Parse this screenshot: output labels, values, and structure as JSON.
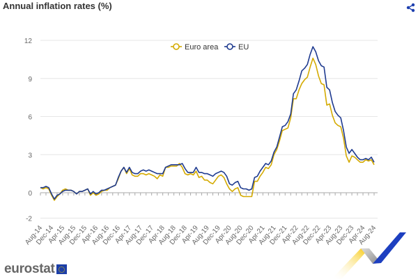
{
  "header": {
    "title": "Annual inflation rates (%)",
    "share_icon": "share-icon"
  },
  "brand": {
    "logo_text": "eurostat"
  },
  "colors": {
    "euro_area": "#d4aa00",
    "eu": "#1e3a8f",
    "grid": "#e6e6e6"
  },
  "chart_data": {
    "type": "line",
    "title": "Annual inflation rates (%)",
    "xlabel": "",
    "ylabel": "",
    "ylim": [
      -2,
      12
    ],
    "yticks": [
      -2,
      0,
      3,
      6,
      9,
      12
    ],
    "x_start": "Aug-14",
    "x_end": "Aug-24",
    "x_interval": "monthly",
    "xtick_labels": [
      "Aug-14",
      "Dec-14",
      "Apr-15",
      "Aug-15",
      "Dec-15",
      "Apr-16",
      "Aug-16",
      "Dec-16",
      "Apr-17",
      "Aug-17",
      "Dec-17",
      "Apr-18",
      "Aug-18",
      "Dec-18",
      "Apr-19",
      "Aug-19",
      "Dec-19",
      "Apr-20",
      "Aug-20",
      "Dec-20",
      "Apr-21",
      "Aug-21",
      "Dec-21",
      "Apr-22",
      "Aug-22",
      "Dec-22",
      "Apr-23",
      "Aug-23",
      "Dec-23",
      "Apr-24",
      "Aug-24"
    ],
    "legend_position": "top-center",
    "series": [
      {
        "name": "Euro area",
        "values": [
          0.4,
          0.3,
          0.4,
          0.3,
          -0.2,
          -0.6,
          -0.3,
          -0.1,
          0.2,
          0.3,
          0.2,
          0.2,
          0.1,
          -0.1,
          0.1,
          0.1,
          0.2,
          0.3,
          -0.2,
          0.0,
          -0.2,
          -0.1,
          0.1,
          0.2,
          0.2,
          0.4,
          0.5,
          0.6,
          1.1,
          1.7,
          2.0,
          1.5,
          1.9,
          1.4,
          1.3,
          1.3,
          1.5,
          1.5,
          1.4,
          1.5,
          1.4,
          1.3,
          1.1,
          1.4,
          1.3,
          2.0,
          2.0,
          2.1,
          2.1,
          2.1,
          2.3,
          2.0,
          1.5,
          1.4,
          1.5,
          1.4,
          1.7,
          1.2,
          1.3,
          1.0,
          1.0,
          0.8,
          0.7,
          1.0,
          1.3,
          1.4,
          1.2,
          0.7,
          0.3,
          0.1,
          0.3,
          0.4,
          -0.2,
          -0.3,
          -0.3,
          -0.3,
          -0.3,
          0.9,
          0.9,
          1.3,
          1.6,
          2.0,
          1.9,
          2.2,
          3.0,
          3.4,
          4.1,
          4.9,
          5.0,
          5.1,
          5.9,
          7.4,
          7.4,
          8.1,
          8.6,
          8.9,
          9.1,
          9.9,
          10.6,
          10.1,
          9.2,
          8.6,
          8.5,
          6.9,
          7.0,
          6.1,
          5.5,
          5.3,
          5.2,
          4.3,
          2.9,
          2.4,
          2.9,
          2.8,
          2.6,
          2.4,
          2.4,
          2.6,
          2.5,
          2.6,
          2.2
        ]
      },
      {
        "name": "EU",
        "values": [
          0.4,
          0.4,
          0.5,
          0.4,
          -0.1,
          -0.5,
          -0.2,
          -0.1,
          0.1,
          0.2,
          0.2,
          0.2,
          0.1,
          -0.1,
          0.1,
          0.1,
          0.2,
          0.3,
          -0.1,
          0.1,
          -0.1,
          0.0,
          0.2,
          0.2,
          0.3,
          0.4,
          0.5,
          0.6,
          1.2,
          1.7,
          2.0,
          1.6,
          2.0,
          1.6,
          1.5,
          1.5,
          1.7,
          1.8,
          1.7,
          1.8,
          1.7,
          1.6,
          1.5,
          1.5,
          1.5,
          2.0,
          2.1,
          2.2,
          2.2,
          2.2,
          2.2,
          2.3,
          1.9,
          1.6,
          1.6,
          1.6,
          2.0,
          1.6,
          1.6,
          1.5,
          1.5,
          1.4,
          1.3,
          1.5,
          1.6,
          1.7,
          1.6,
          1.3,
          0.7,
          0.6,
          0.8,
          0.9,
          0.4,
          0.3,
          0.3,
          0.2,
          0.3,
          1.2,
          1.3,
          1.7,
          2.0,
          2.3,
          2.2,
          2.5,
          3.2,
          3.6,
          4.4,
          5.2,
          5.3,
          5.6,
          6.2,
          7.8,
          8.1,
          8.8,
          9.6,
          9.8,
          10.1,
          10.9,
          11.5,
          11.1,
          10.4,
          10.0,
          9.9,
          8.3,
          8.1,
          7.1,
          6.4,
          6.1,
          5.9,
          4.9,
          3.6,
          3.1,
          3.4,
          3.1,
          2.8,
          2.6,
          2.6,
          2.7,
          2.6,
          2.8,
          2.4
        ]
      }
    ]
  }
}
